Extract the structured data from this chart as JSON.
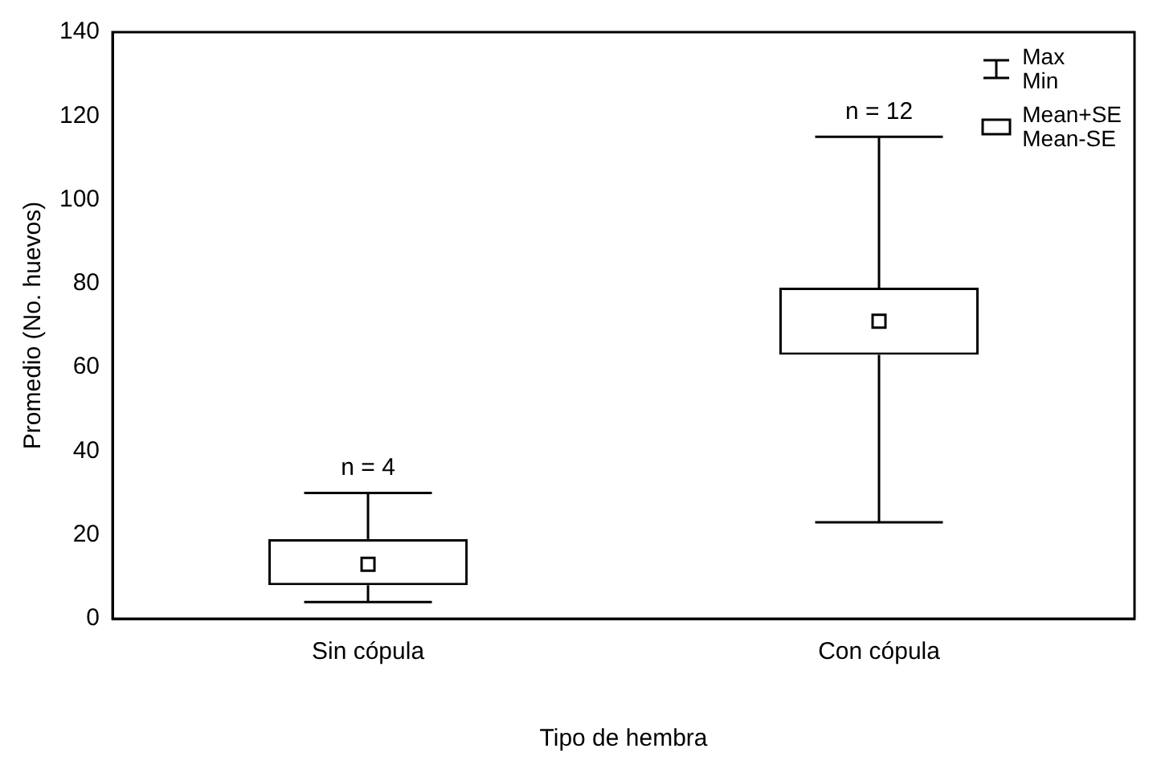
{
  "chart_data": {
    "type": "box",
    "xlabel": "Tipo de hembra",
    "ylabel": "Promedio (No. huevos)",
    "categories": [
      "Sin cópula",
      "Con cópula"
    ],
    "boxes": [
      {
        "low": 4,
        "q1": 8,
        "median": 13,
        "q3": 19,
        "high": 30
      },
      {
        "low": 23,
        "q1": 63,
        "median": 71,
        "q3": 79,
        "high": 115
      }
    ],
    "ylim": [
      0,
      140
    ],
    "yticks": [
      0,
      20,
      40,
      60,
      80,
      100,
      120,
      140
    ],
    "grid": false,
    "annotations": [
      "Max",
      "Min",
      "Mean+SE",
      "Mean-SE",
      {
        "text": "n = 4",
        "x": "Sin cópula",
        "y": 30
      },
      {
        "text": "n = 12",
        "x": "Con cópula",
        "y": 115
      }
    ]
  }
}
